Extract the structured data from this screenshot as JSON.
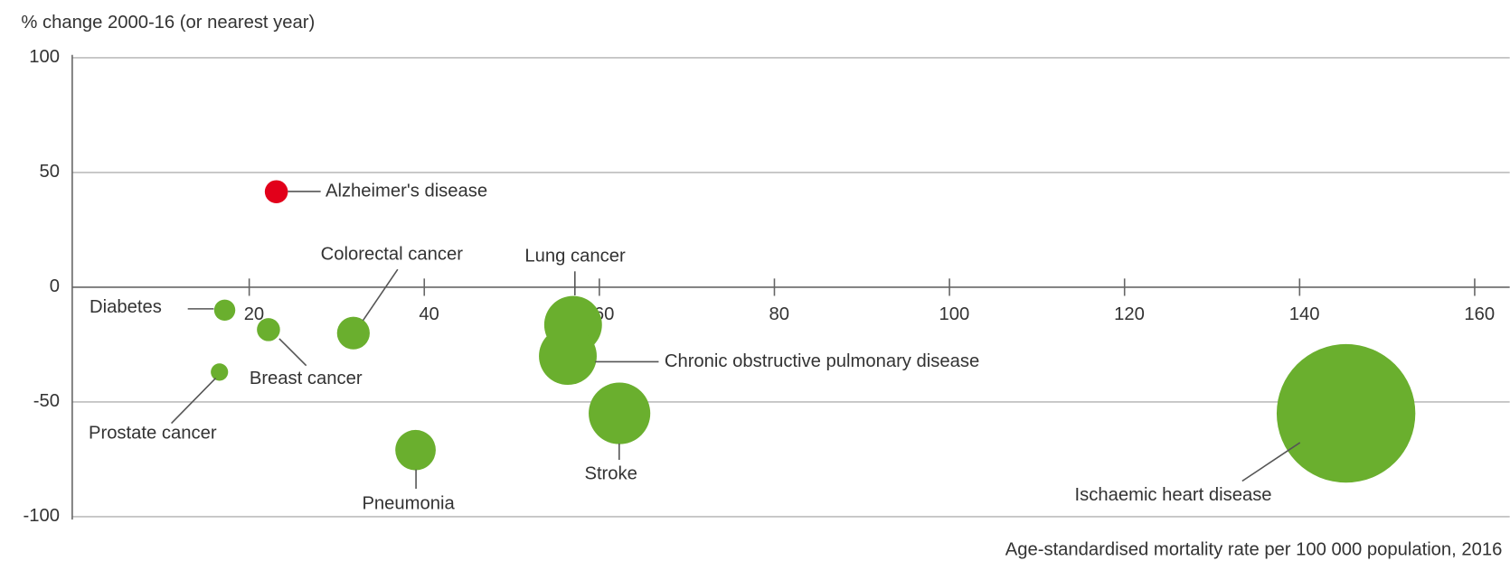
{
  "chart_data": {
    "type": "bubble",
    "y_label": "% change 2000-16 (or nearest year)",
    "x_label": "Age-standardised mortality rate per 100 000 population, 2016",
    "categories": [
      "Diabetes",
      "Breast cancer",
      "Prostate cancer",
      "Alzheimer's disease",
      "Colorectal cancer",
      "Pneumonia",
      "Lung cancer",
      "Chronic obstructive pulmonary disease",
      "Stroke",
      "Ischaemic heart disease"
    ],
    "x": [
      17.2,
      22.2,
      16.6,
      23.1,
      31.9,
      39,
      57,
      56.4,
      62.3,
      145.3
    ],
    "values": [
      -10,
      -18.5,
      -37,
      41.6,
      -20,
      -71,
      -16.4,
      -30,
      -55,
      -55
    ],
    "sizes": [
      121,
      144,
      81,
      144,
      289,
      441,
      900,
      900,
      1024,
      5184
    ],
    "colors": [
      "#6aaf2e",
      "#6aaf2e",
      "#6aaf2e",
      "#e2001a",
      "#6aaf2e",
      "#6aaf2e",
      "#6aaf2e",
      "#6aaf2e",
      "#6aaf2e",
      "#6aaf2e"
    ],
    "xlim": [
      0,
      164
    ],
    "ylim": [
      -100,
      100
    ],
    "xticks": [
      20,
      40,
      60,
      80,
      100,
      120,
      140,
      160
    ],
    "yticks": [
      -100,
      -50,
      0,
      50,
      100
    ],
    "grid": true
  }
}
